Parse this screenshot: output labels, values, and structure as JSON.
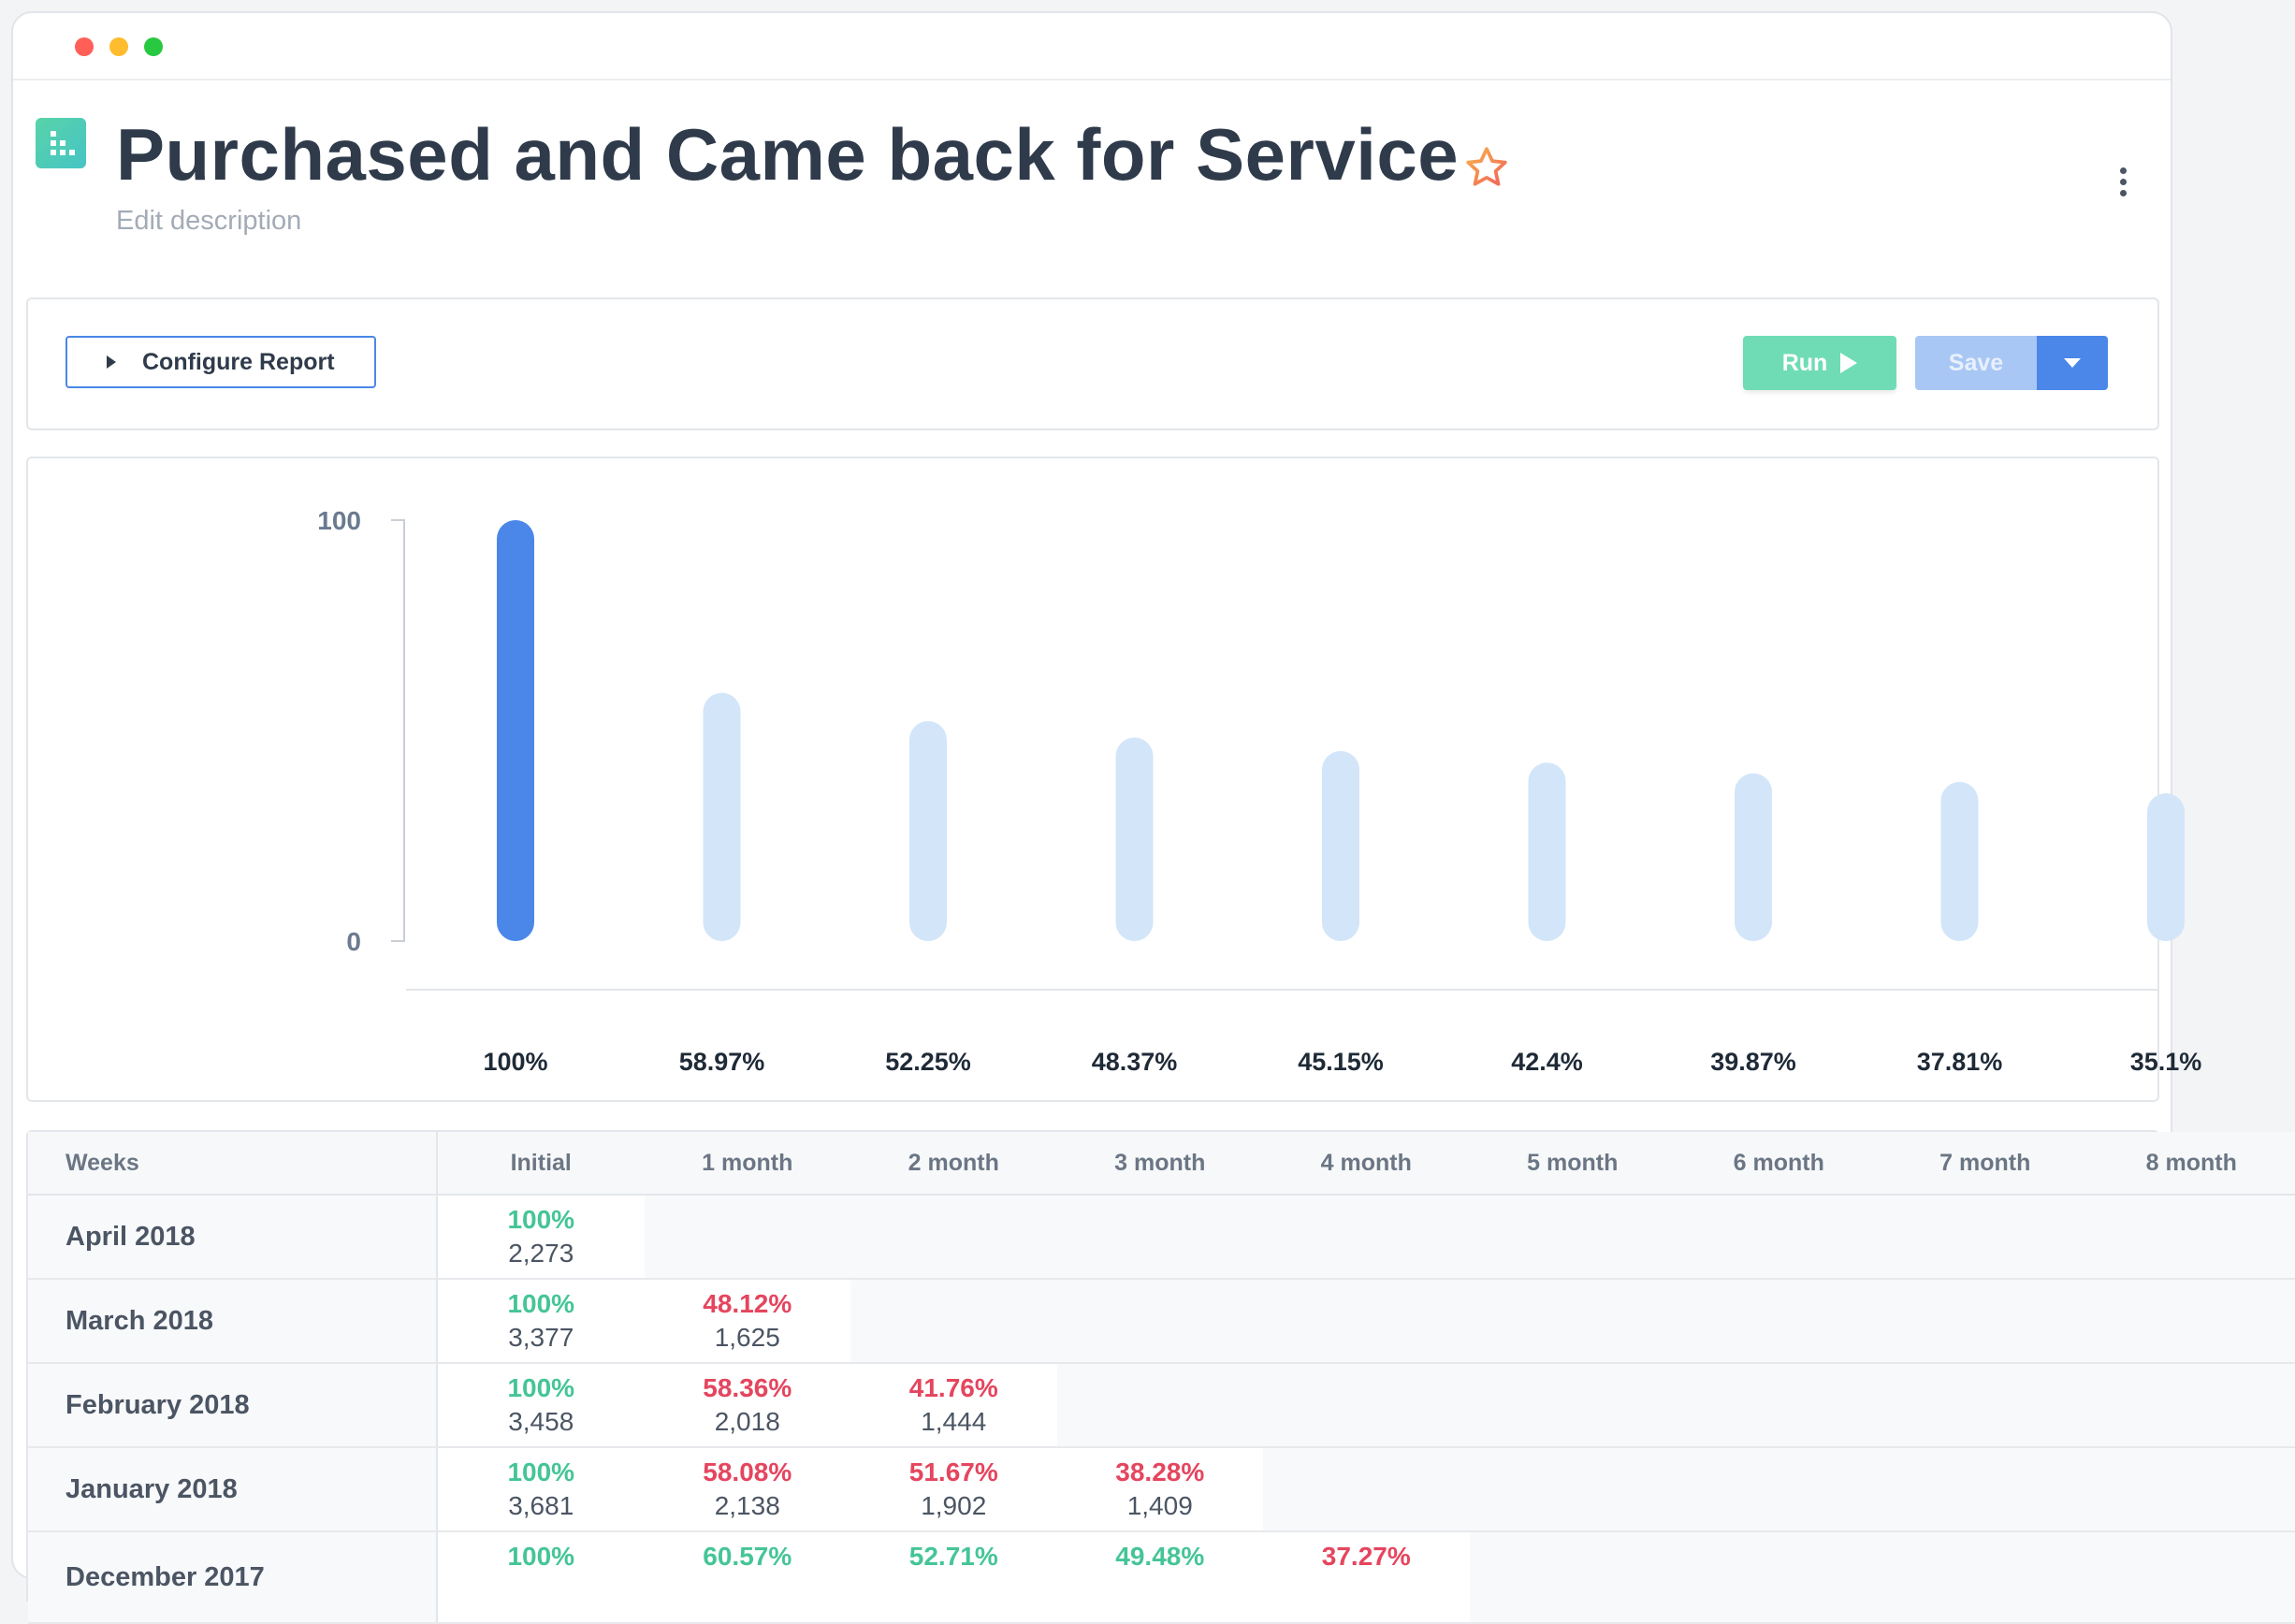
{
  "header": {
    "title": "Purchased and Came back for Service",
    "description_placeholder": "Edit description"
  },
  "toolbar": {
    "configure_label": "Configure Report",
    "run_label": "Run",
    "save_label": "Save"
  },
  "colors": {
    "accent_blue": "#4a87e8",
    "bar_light": "#d3e5f9",
    "run_green": "#6fdcb5",
    "positive": "#45c597",
    "negative": "#e5455e"
  },
  "chart_data": {
    "type": "bar",
    "categories": [
      "Initial",
      "1 month",
      "2 month",
      "3 month",
      "4 month",
      "5 month",
      "6 month",
      "7 month",
      "8 month"
    ],
    "values": [
      100,
      58.97,
      52.25,
      48.37,
      45.15,
      42.4,
      39.87,
      37.81,
      35.1
    ],
    "value_labels": [
      "100%",
      "58.97%",
      "52.25%",
      "48.37%",
      "45.15%",
      "42.4%",
      "39.87%",
      "37.81%",
      "35.1%"
    ],
    "ylim": [
      0,
      100
    ],
    "yticks": [
      "100",
      "0"
    ],
    "highlight_index": 0
  },
  "table": {
    "header_first": "Weeks",
    "columns": [
      "Initial",
      "1 month",
      "2 month",
      "3 month",
      "4 month",
      "5 month",
      "6 month",
      "7 month",
      "8 month"
    ],
    "rows": [
      {
        "label": "April 2018",
        "cells": [
          {
            "pct": "100%",
            "count": "2,273",
            "tone": "green"
          }
        ]
      },
      {
        "label": "March 2018",
        "cells": [
          {
            "pct": "100%",
            "count": "3,377",
            "tone": "green"
          },
          {
            "pct": "48.12%",
            "count": "1,625",
            "tone": "red"
          }
        ]
      },
      {
        "label": "February 2018",
        "cells": [
          {
            "pct": "100%",
            "count": "3,458",
            "tone": "green"
          },
          {
            "pct": "58.36%",
            "count": "2,018",
            "tone": "red"
          },
          {
            "pct": "41.76%",
            "count": "1,444",
            "tone": "red"
          }
        ]
      },
      {
        "label": "January 2018",
        "cells": [
          {
            "pct": "100%",
            "count": "3,681",
            "tone": "green"
          },
          {
            "pct": "58.08%",
            "count": "2,138",
            "tone": "red"
          },
          {
            "pct": "51.67%",
            "count": "1,902",
            "tone": "red"
          },
          {
            "pct": "38.28%",
            "count": "1,409",
            "tone": "red"
          }
        ]
      },
      {
        "label": "December 2017",
        "cells": [
          {
            "pct": "100%",
            "count": "",
            "tone": "green"
          },
          {
            "pct": "60.57%",
            "count": "",
            "tone": "green"
          },
          {
            "pct": "52.71%",
            "count": "",
            "tone": "green"
          },
          {
            "pct": "49.48%",
            "count": "",
            "tone": "green"
          },
          {
            "pct": "37.27%",
            "count": "",
            "tone": "red"
          }
        ]
      }
    ]
  }
}
